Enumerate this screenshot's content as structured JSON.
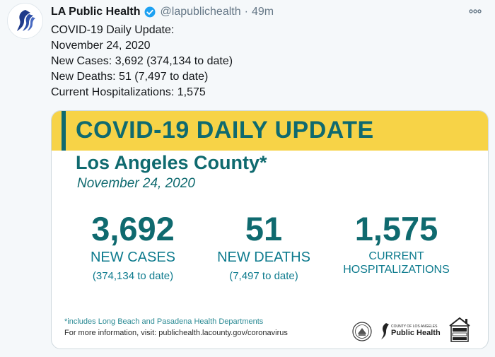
{
  "tweet": {
    "display_name": "LA Public Health",
    "handle": "@lapublichealth",
    "separator": "·",
    "time": "49m",
    "more_icon": "more-horizontal-icon",
    "lines": [
      "COVID-19 Daily Update:",
      "November 24, 2020",
      "New Cases: 3,692 (374,134 to date)",
      "New Deaths: 51 (7,497 to date)",
      "Current Hospitalizations: 1,575"
    ]
  },
  "card": {
    "title": "COVID-19 DAILY UPDATE",
    "subtitle": "Los Angeles County*",
    "date": "November 24, 2020",
    "stats": [
      {
        "value": "3,692",
        "label": "NEW CASES",
        "sub": "(374,134 to date)"
      },
      {
        "value": "51",
        "label": "NEW DEATHS",
        "sub": "(7,497 to date)"
      },
      {
        "value": "1,575",
        "label_line1": "CURRENT",
        "label_line2": "HOSPITALIZATIONS"
      }
    ],
    "footnote": "*includes Long Beach and Pasadena Health Departments",
    "info": "For more information, visit: publichealth.lacounty.gov/coronavirus",
    "logo_ph_small": "COUNTY OF LOS ANGELES",
    "logo_ph_big": "Public Health",
    "logo_house_text": [
      "STAY SAFE",
      "STAY HEALTHY",
      "STAY HOME"
    ]
  },
  "colors": {
    "teal": "#0f6a6f",
    "yellow": "#f7d347",
    "verified": "#1da1f2"
  }
}
